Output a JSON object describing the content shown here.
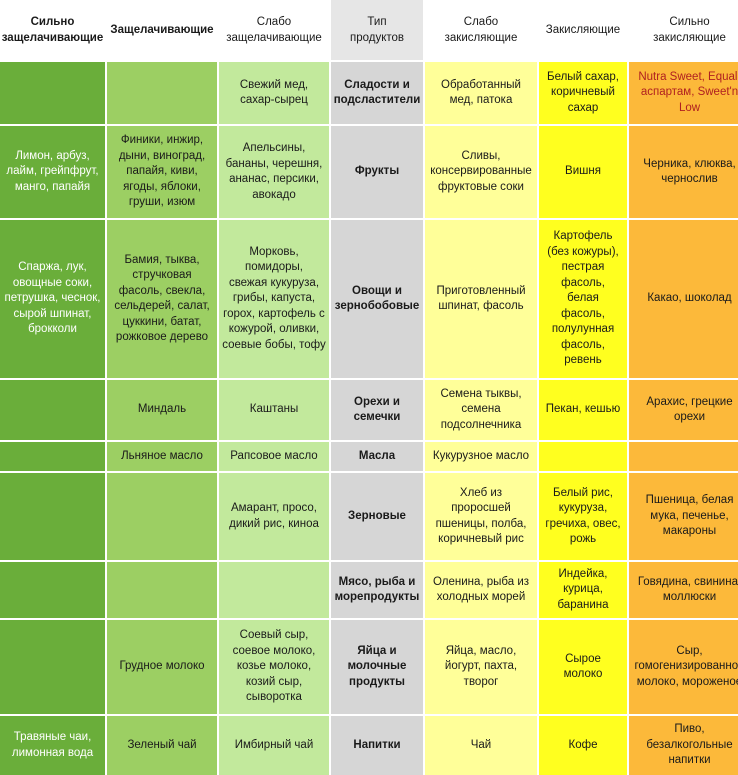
{
  "headers": [
    "Сильно\nзащелачивающие",
    "Защелачивающие",
    "Слабо\nзащелачивающие",
    "Тип\nпродуктов",
    "Слабо\nзакисляющие",
    "Закисляющие",
    "Сильно\nзакисляющие"
  ],
  "rows": [
    {
      "category": "Сладости и\nподсластители",
      "cells": [
        "",
        "",
        "Свежий мед,\nсахар-сырец",
        "Обработанный\nмед, патока",
        "Белый сахар,\nкоричневый\nсахар",
        "Nutra Sweet, Equal,\nаспартам, Sweet'n\nLow"
      ]
    },
    {
      "category": "Фрукты",
      "cells": [
        "Лимон, арбуз,\nлайм, грейпфрут,\nманго, папайя",
        "Финики, инжир,\nдыни, виноград,\nпапайя, киви,\nягоды, яблоки,\nгруши, изюм",
        "Апельсины,\nбананы, черешня,\nананас, персики,\nавокадо",
        "Сливы,\nконсервированные\nфруктовые соки",
        "Вишня",
        "Черника, клюква,\nчернослив"
      ]
    },
    {
      "category": "Овощи и\nзернобобовые",
      "cells": [
        "Спаржа, лук,\nовощные соки,\nпетрушка, чеснок,\nсырой шпинат,\nброкколи",
        "Бамия, тыква,\nстручковая\nфасоль, свекла,\nсельдерей, салат,\nцуккини, батат,\nрожковое дерево",
        "Морковь,\nпомидоры,\nсвежая кукуруза,\nгрибы, капуста,\nгорох, картофель с\nкожурой, оливки,\nсоевые бобы, тофу",
        "Приготовленный\nшпинат, фасоль",
        "Картофель\n(без кожуры),\nпестрая\nфасоль,\nбелая\nфасоль,\nполулунная\nфасоль,\nревень",
        "Какао, шоколад"
      ]
    },
    {
      "category": "Орехи и\nсемечки",
      "cells": [
        "",
        "Миндаль",
        "Каштаны",
        "Семена тыквы,\nсемена\nподсолнечника",
        "Пекан, кешью",
        "Арахис, грецкие\nорехи"
      ]
    },
    {
      "category": "Масла",
      "cells": [
        "",
        "Льняное масло",
        "Рапсовое масло",
        "Кукурузное масло",
        "",
        ""
      ]
    },
    {
      "category": "Зерновые",
      "cells": [
        "",
        "",
        "Амарант, просо,\nдикий рис, киноа",
        "Хлеб из\nпроросшей\nпшеницы, полба,\nкоричневый рис",
        "Белый рис,\nкукуруза,\nгречиха, овес,\nрожь",
        "Пшеница, белая\nмука, печенье,\nмакароны"
      ]
    },
    {
      "category": "Мясо, рыба и\nморепродукты",
      "cells": [
        "",
        "",
        "",
        "Оленина, рыба из\nхолодных морей",
        "Индейка,\nкурица,\nбаранина",
        "Говядина, свинина,\nмоллюски"
      ]
    },
    {
      "category": "Яйца и\nмолочные\nпродукты",
      "cells": [
        "",
        "Грудное молоко",
        "Соевый сыр,\nсоевое молоко,\nкозье молоко,\nкозий сыр,\nсыворотка",
        "Яйца, масло,\nйогурт, пахта,\nтворог",
        "Сырое\nмолоко",
        "Сыр,\nгомогенизированное\nмолоко, мороженое"
      ]
    },
    {
      "category": "Напитки",
      "cells": [
        "Травяные чаи,\nлимонная вода",
        "Зеленый чай",
        "Имбирный чай",
        "Чай",
        "Кофе",
        "Пиво,\nбезалкогольные\nнапитки"
      ]
    }
  ]
}
